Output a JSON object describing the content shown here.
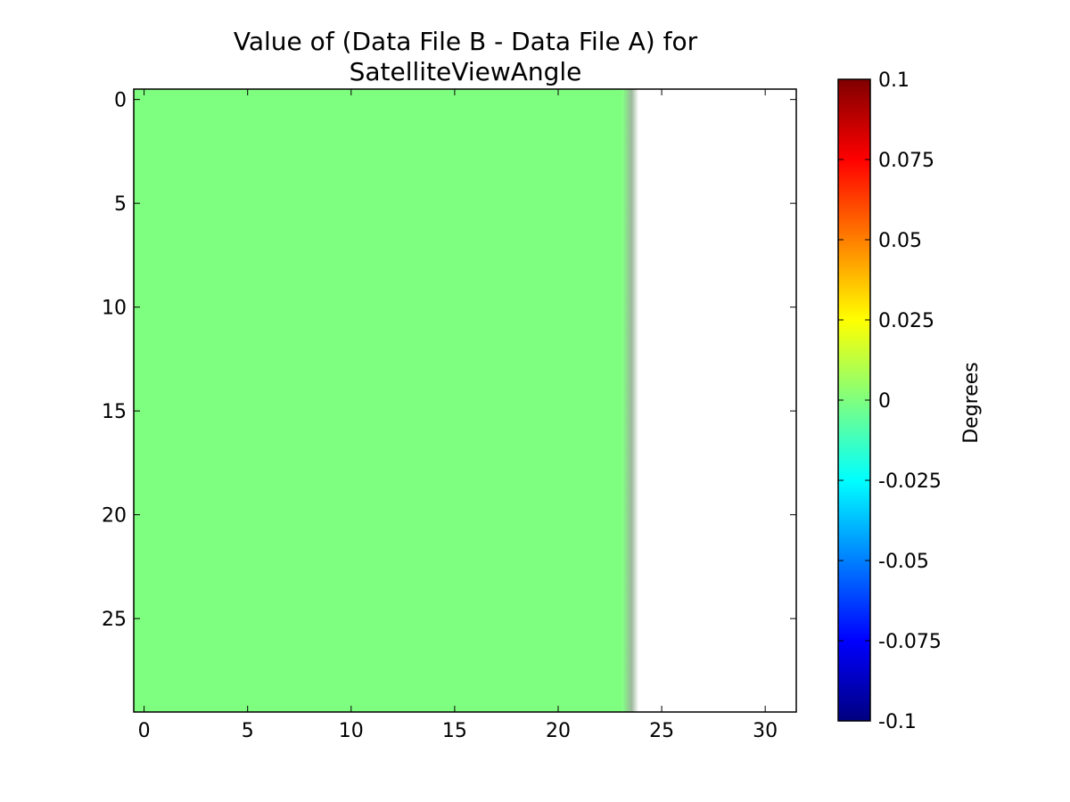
{
  "chart_data": {
    "type": "heatmap",
    "title_lines": [
      "Value of (Data File B - Data File A) for",
      "SatelliteViewAngle"
    ],
    "x": {
      "lim": [
        -0.5,
        31.5
      ],
      "ticks": [
        0,
        5,
        10,
        15,
        20,
        25,
        30
      ],
      "tick_labels": [
        "0",
        "5",
        "10",
        "15",
        "20",
        "25",
        "30"
      ]
    },
    "y": {
      "lim": [
        29.5,
        -0.5
      ],
      "inverted": true,
      "ticks": [
        0,
        5,
        10,
        15,
        20,
        25
      ],
      "tick_labels": [
        "0",
        "5",
        "10",
        "15",
        "20",
        "25"
      ]
    },
    "grid": false,
    "data": {
      "rows": 30,
      "columns": 32,
      "valid_columns": [
        0,
        23
      ],
      "valid_value": 0,
      "masked_columns": [
        24,
        31
      ],
      "masked_color": "#ffffff"
    },
    "colorbar": {
      "colormap": "jet",
      "vmin": -0.1,
      "vmax": 0.1,
      "label": "Degrees",
      "ticks": [
        0.1,
        0.075,
        0.05,
        0.025,
        0,
        -0.025,
        -0.05,
        -0.075,
        -0.1
      ],
      "tick_labels": [
        "0.1",
        "0.075",
        "0.05",
        "0.025",
        "0",
        "-0.025",
        "-0.05",
        "-0.075",
        "-0.1"
      ],
      "stops": [
        "#00007f",
        "#0000ff",
        "#007fff",
        "#00ffff",
        "#7fff7f",
        "#ffff00",
        "#ff7f00",
        "#ff0000",
        "#7f0000"
      ]
    },
    "fill_color": "#7fff7f"
  }
}
